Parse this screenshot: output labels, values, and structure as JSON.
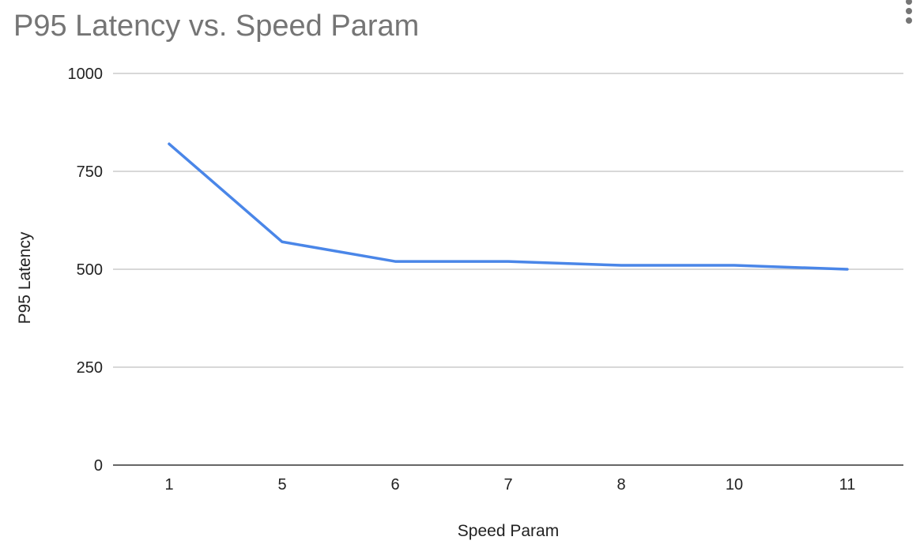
{
  "chart_data": {
    "type": "line",
    "title": "P95 Latency vs. Speed Param",
    "xlabel": "Speed Param",
    "ylabel": "P95 Latency",
    "categories": [
      "1",
      "5",
      "6",
      "7",
      "8",
      "10",
      "11"
    ],
    "series": [
      {
        "name": "P95 Latency",
        "values": [
          820,
          570,
          520,
          520,
          510,
          510,
          500
        ],
        "color": "#4a86e8"
      }
    ],
    "ylim": [
      0,
      1000
    ],
    "yticks": [
      "0",
      "250",
      "500",
      "750",
      "1000"
    ],
    "grid": true,
    "legend": "none"
  },
  "menu": {
    "icon": "more-vert-icon"
  },
  "colors": {
    "title": "#757575",
    "grid": "#cccccc",
    "axis": "#333333",
    "line": "#4a86e8"
  }
}
